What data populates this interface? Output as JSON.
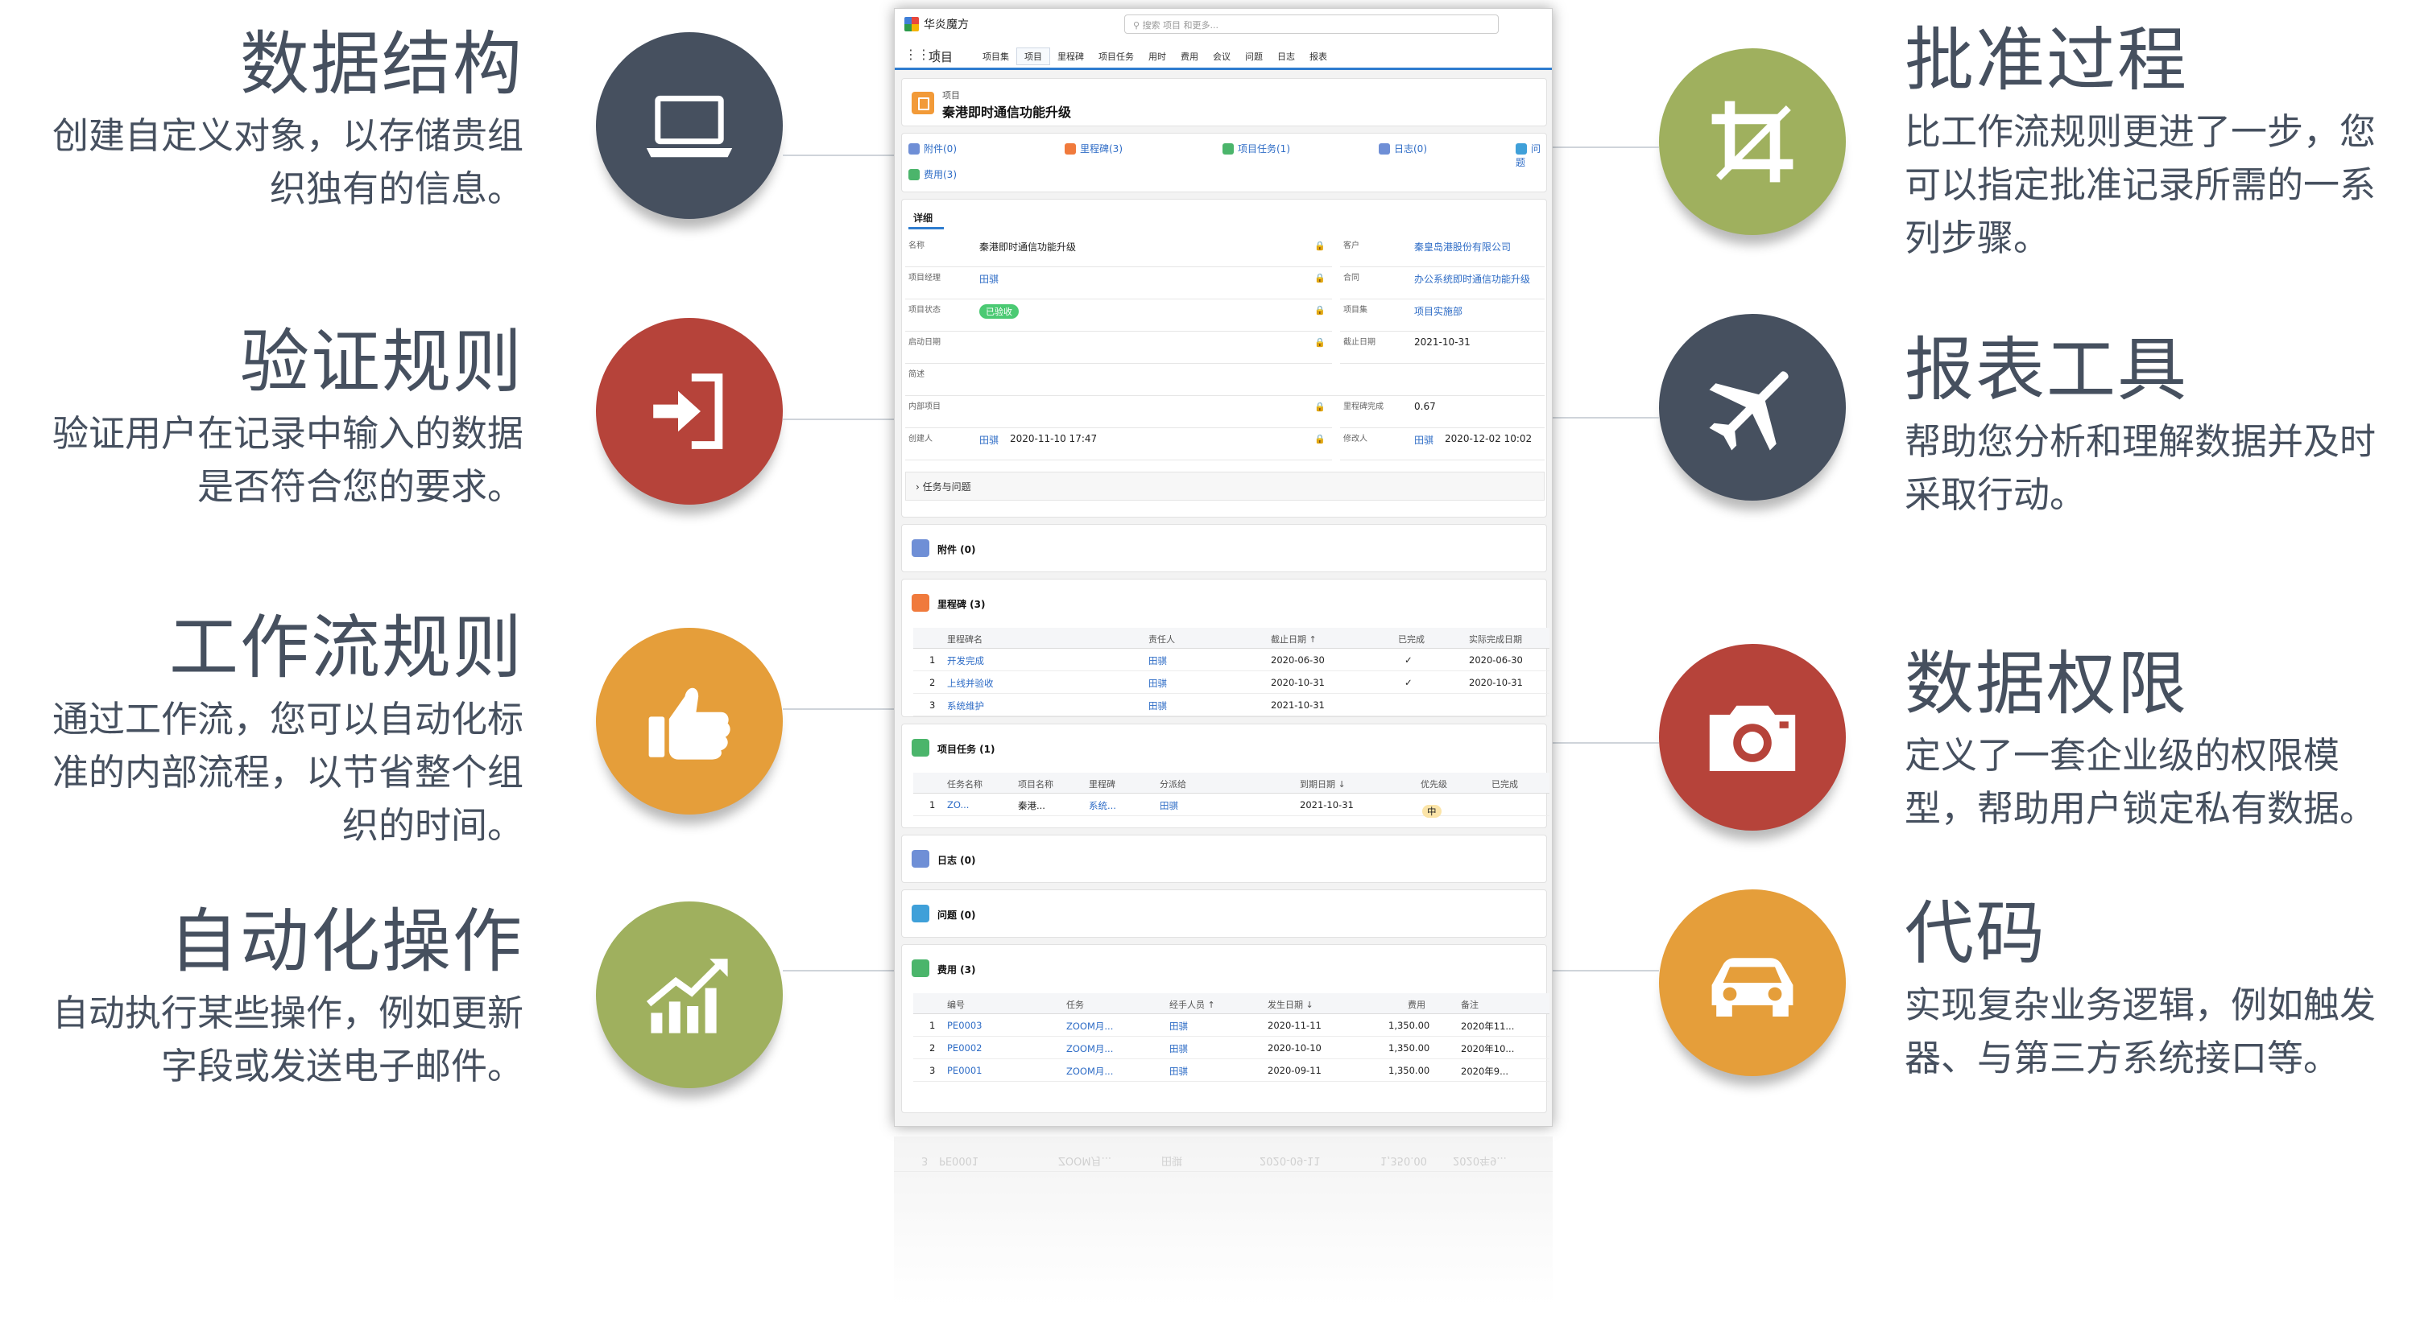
{
  "features_left": [
    {
      "title": "数据结构",
      "desc": [
        "创建自定义对象，以存储贵组",
        "织独有的信息。"
      ],
      "icon": "laptop-icon"
    },
    {
      "title": "验证规则",
      "desc": [
        "验证用户在记录中输入的数据",
        "是否符合您的要求。"
      ],
      "icon": "sign-in-icon"
    },
    {
      "title": "工作流规则",
      "desc": [
        "通过工作流，您可以自动化标",
        "准的内部流程，以节省整个组",
        "织的时间。"
      ],
      "icon": "thumbs-up-icon"
    },
    {
      "title": "自动化操作",
      "desc": [
        "自动执行某些操作，例如更新",
        "字段或发送电子邮件。"
      ],
      "icon": "bar-chart-trend-icon"
    }
  ],
  "features_right": [
    {
      "title": "批准过程",
      "desc": [
        "比工作流规则更进了一步，您",
        "可以指定批准记录所需的一系",
        "列步骤。"
      ],
      "icon": "crop-icon"
    },
    {
      "title": "报表工具",
      "desc": [
        "帮助您分析和理解数据并及时",
        "采取行动。"
      ],
      "icon": "airplane-icon"
    },
    {
      "title": "数据权限",
      "desc": [
        "定义了一套企业级的权限模",
        "型，帮助用户锁定私有数据。"
      ],
      "icon": "camera-icon"
    },
    {
      "title": "代码",
      "desc": [
        "实现复杂业务逻辑，例如触发",
        "器、与第三方系统接口等。"
      ],
      "icon": "car-icon"
    }
  ],
  "colors": {
    "navy": "#46505f",
    "red": "#b6433a",
    "orange": "#e59e3a",
    "green": "#9fb05e",
    "link": "#2e6cc6"
  },
  "app": {
    "brand": "华炎魔方",
    "search_placeholder": "搜索 项目 和更多...",
    "nav_app": "项目",
    "nav_tabs": [
      "项目集",
      "项目",
      "里程碑",
      "项目任务",
      "用时",
      "费用",
      "会议",
      "问题",
      "日志",
      "报表"
    ],
    "active_tab": "项目",
    "record": {
      "type": "项目",
      "name": "秦港即时通信功能升级"
    },
    "related_links": [
      "附件(0)",
      "里程碑(3)",
      "项目任务(1)",
      "日志(0)",
      "问题",
      "费用(3)"
    ],
    "detail_tab": "详细",
    "fields": {
      "name_label": "名称",
      "name_value": "秦港即时通信功能升级",
      "customer_label": "客户",
      "customer_value": "秦皇岛港股份有限公司",
      "manager_label": "项目经理",
      "manager_value": "田骐",
      "contract_label": "合同",
      "contract_value": "办公系统即时通信功能升级",
      "status_label": "项目状态",
      "status_value": "已验收",
      "program_label": "项目集",
      "program_value": "项目实施部",
      "start_label": "启动日期",
      "start_value": "",
      "end_label": "截止日期",
      "end_value": "2021-10-31",
      "desc_label": "简述",
      "internal_label": "内部项目",
      "progress_label": "里程碑完成",
      "progress_value": "0.67",
      "creator_label": "创建人",
      "creator_value": "田骐",
      "created_time": "2020-11-10 17:47",
      "modifier_label": "修改人",
      "modifier_value": "田骐",
      "modified_time": "2020-12-02 10:02"
    },
    "tasks_issues_section": "任务与问题",
    "attachments": "附件 (0)",
    "milestones": {
      "title": "里程碑 (3)",
      "columns": [
        "里程碑名",
        "责任人",
        "截止日期 ↑",
        "已完成",
        "实际完成日期"
      ],
      "rows": [
        [
          "1",
          "开发完成",
          "田骐",
          "2020-06-30",
          "✓",
          "2020-06-30"
        ],
        [
          "2",
          "上线并验收",
          "田骐",
          "2020-10-31",
          "✓",
          "2020-10-31"
        ],
        [
          "3",
          "系统维护",
          "田骐",
          "2021-10-31",
          "",
          ""
        ]
      ]
    },
    "tasks": {
      "title": "项目任务 (1)",
      "columns": [
        "任务名称",
        "项目名称",
        "里程碑",
        "分派给",
        "到期日期 ↓",
        "优先级",
        "已完成"
      ],
      "rows": [
        [
          "1",
          "ZO...",
          "秦港...",
          "系统...",
          "田骐",
          "2021-10-31",
          "中",
          ""
        ]
      ]
    },
    "logs": "日志 (0)",
    "issues": "问题 (0)",
    "expenses": {
      "title": "费用 (3)",
      "columns": [
        "编号",
        "任务",
        "经手人员 ↑",
        "发生日期 ↓",
        "费用",
        "备注"
      ],
      "rows": [
        [
          "1",
          "PE0003",
          "ZOOM月...",
          "田骐",
          "2020-11-11",
          "1,350.00",
          "2020年11..."
        ],
        [
          "2",
          "PE0002",
          "ZOOM月...",
          "田骐",
          "2020-10-10",
          "1,350.00",
          "2020年10..."
        ],
        [
          "3",
          "PE0001",
          "ZOOM月...",
          "田骐",
          "2020-09-11",
          "1,350.00",
          "2020年9..."
        ]
      ]
    },
    "reflection_row": [
      "3",
      "PE0001",
      "ZOOM月...",
      "田骐",
      "2020-09-11",
      "1,350.00",
      "2020年9..."
    ]
  }
}
